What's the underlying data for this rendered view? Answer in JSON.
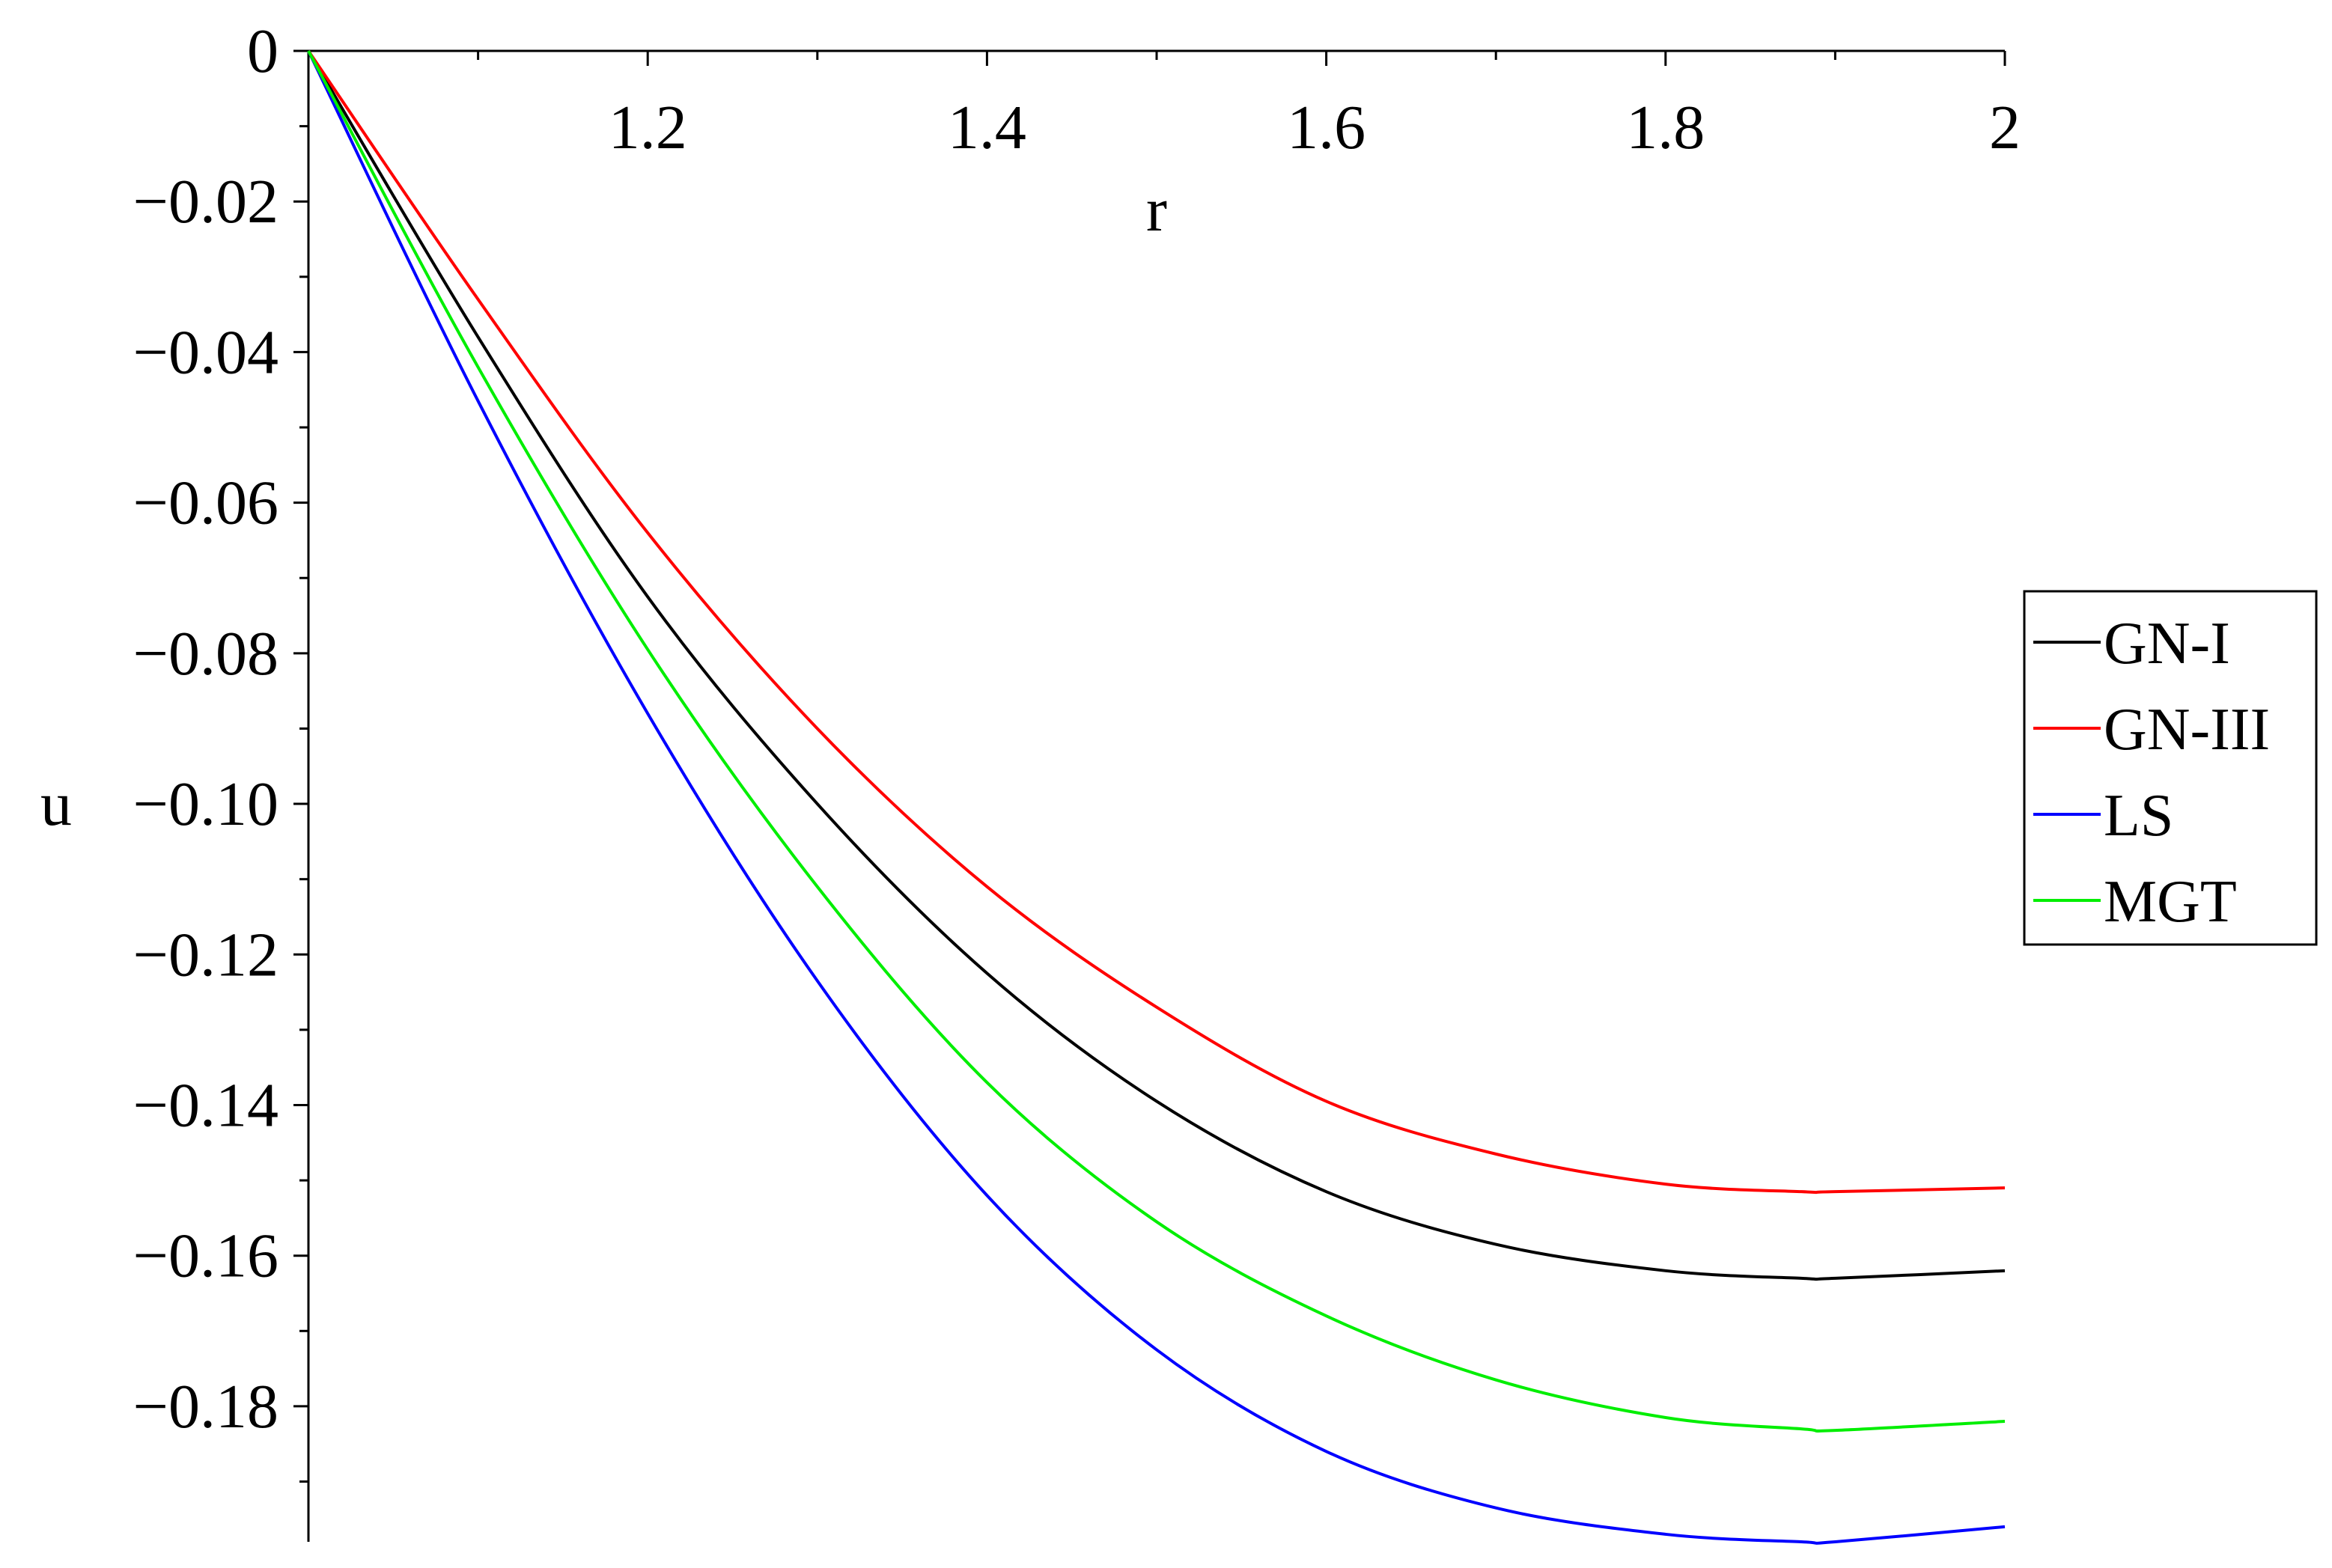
{
  "chart_data": {
    "type": "line",
    "xlabel": "r",
    "ylabel": "u",
    "xlim": [
      1,
      2
    ],
    "ylim": [
      -0.198,
      0
    ],
    "x_ticks": [
      1.2,
      1.4,
      1.6,
      1.8,
      2
    ],
    "x_tick_labels": [
      "1.2",
      "1.4",
      "1.6",
      "1.8",
      "2"
    ],
    "y_ticks": [
      0,
      -0.02,
      -0.04,
      -0.06,
      -0.08,
      -0.1,
      -0.12,
      -0.14,
      -0.16,
      -0.18
    ],
    "y_tick_labels": [
      "0",
      "−0.02",
      "−0.04",
      "−0.06",
      "−0.08",
      "−0.10",
      "−0.12",
      "−0.14",
      "−0.16",
      "−0.18"
    ],
    "grid": false,
    "legend_position": "right",
    "x": [
      1.0,
      1.1,
      1.2,
      1.3,
      1.4,
      1.5,
      1.6,
      1.7,
      1.8,
      1.88,
      1.9,
      2.0
    ],
    "series": [
      {
        "name": "GN-I",
        "color": "#000000",
        "values": [
          0,
          -0.038,
          -0.0725,
          -0.1,
          -0.1225,
          -0.1395,
          -0.1515,
          -0.1585,
          -0.162,
          -0.163,
          -0.163,
          -0.162
        ]
      },
      {
        "name": "GN-III",
        "color": "#ff0000",
        "values": [
          0,
          -0.033,
          -0.064,
          -0.09,
          -0.111,
          -0.127,
          -0.1395,
          -0.1465,
          -0.1505,
          -0.1515,
          -0.1515,
          -0.151
        ]
      },
      {
        "name": "LS",
        "color": "#0000ff",
        "values": [
          0,
          -0.0465,
          -0.088,
          -0.1235,
          -0.152,
          -0.1725,
          -0.186,
          -0.1935,
          -0.197,
          -0.198,
          -0.198,
          -0.196
        ]
      },
      {
        "name": "MGT",
        "color": "#00ee00",
        "values": [
          0,
          -0.042,
          -0.0795,
          -0.111,
          -0.137,
          -0.1555,
          -0.168,
          -0.1765,
          -0.1815,
          -0.183,
          -0.1832,
          -0.182
        ]
      }
    ]
  }
}
